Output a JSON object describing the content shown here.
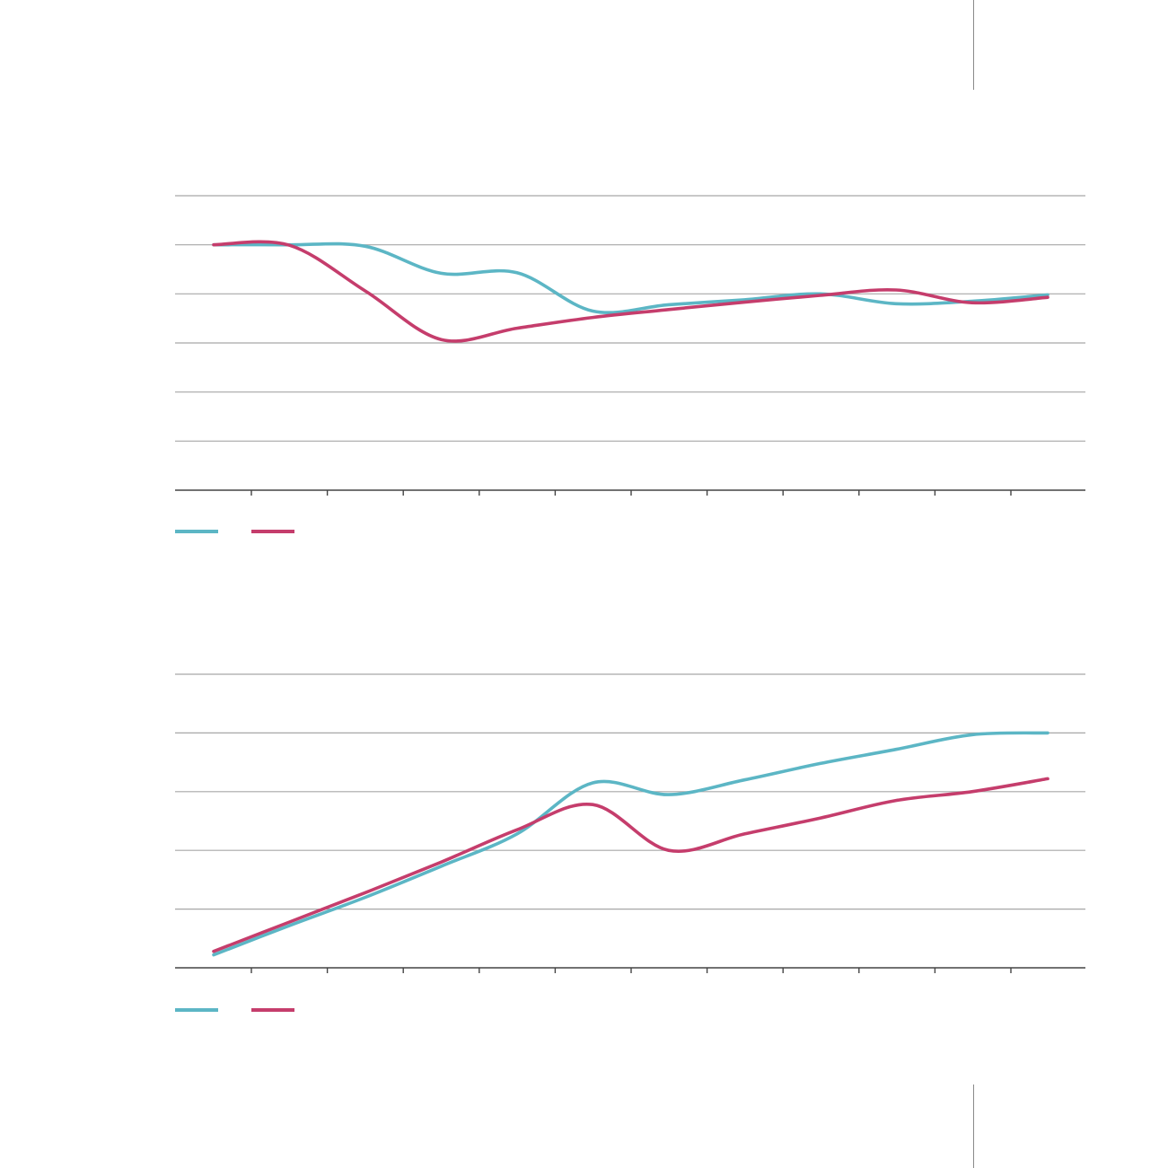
{
  "colors": {
    "teal": "#5cb6c5",
    "crimson": "#c53d6c",
    "grid": "#a7a7a7",
    "axis": "#444444"
  },
  "chart_data": [
    {
      "type": "line",
      "grid": true,
      "legend_placement": "bottom-left",
      "x": [
        1,
        2,
        3,
        4,
        5,
        6,
        7,
        8,
        9,
        10,
        11,
        12
      ],
      "ylim": [
        0,
        6
      ],
      "series": [
        {
          "name": "",
          "color": "#5cb6c5",
          "values": [
            5.0,
            5.0,
            4.97,
            4.42,
            4.43,
            3.65,
            3.78,
            3.88,
            4.0,
            3.8,
            3.85,
            3.98
          ]
        },
        {
          "name": "",
          "color": "#c53d6c",
          "values": [
            5.0,
            4.99,
            4.06,
            3.07,
            3.3,
            3.52,
            3.68,
            3.83,
            3.97,
            4.08,
            3.82,
            3.93
          ]
        }
      ]
    },
    {
      "type": "line",
      "grid": true,
      "legend_placement": "bottom-left",
      "x": [
        1,
        2,
        3,
        4,
        5,
        6,
        7,
        8,
        9,
        10,
        11,
        12
      ],
      "ylim": [
        0,
        5
      ],
      "series": [
        {
          "name": "",
          "color": "#5cb6c5",
          "values": [
            0.22,
            0.72,
            1.2,
            1.73,
            2.28,
            3.15,
            2.95,
            3.2,
            3.48,
            3.72,
            3.97,
            4.0
          ]
        },
        {
          "name": "",
          "color": "#c53d6c",
          "values": [
            0.28,
            0.78,
            1.28,
            1.8,
            2.35,
            2.78,
            2.0,
            2.28,
            2.55,
            2.85,
            3.0,
            3.22
          ]
        }
      ]
    }
  ]
}
